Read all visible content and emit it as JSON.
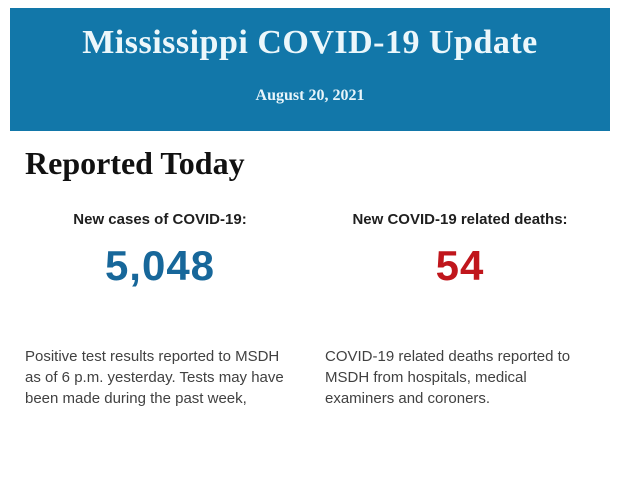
{
  "banner": {
    "title": "Mississippi COVID-19 Update",
    "date": "August 20, 2021",
    "background_color": "#1277a9",
    "text_color": "#ecf7fb"
  },
  "report": {
    "heading": "Reported Today",
    "stats": [
      {
        "label": "New cases of COVID-19:",
        "value": "5,048",
        "value_color": "#17679a",
        "description": "Positive test results reported to MSDH as of 6 p.m. yesterday. Tests may have been made during the past week,"
      },
      {
        "label": "New COVID-19 related deaths:",
        "value": "54",
        "value_color": "#c0161c",
        "description": "COVID-19 related deaths reported to MSDH from hospitals, medical examiners and coroners."
      }
    ]
  }
}
